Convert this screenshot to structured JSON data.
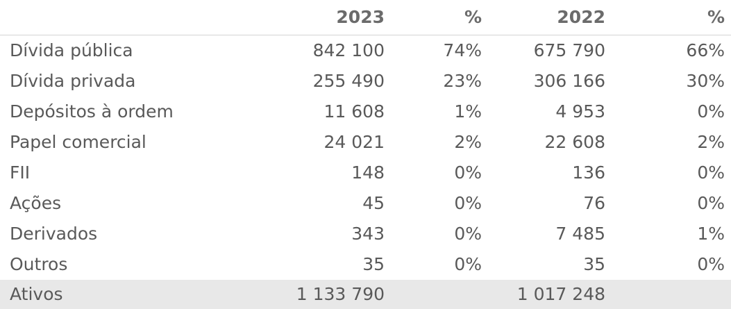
{
  "header": {
    "label": "",
    "year_1": "2023",
    "pct_1": "%",
    "year_2": "2022",
    "pct_2": "%"
  },
  "rows": [
    {
      "label": "Dívida pública",
      "v2023": "842 100",
      "p2023": "74%",
      "v2022": "675 790",
      "p2022": "66%"
    },
    {
      "label": "Dívida privada",
      "v2023": "255 490",
      "p2023": "23%",
      "v2022": "306 166",
      "p2022": "30%"
    },
    {
      "label": "Depósitos à ordem",
      "v2023": "11 608",
      "p2023": "1%",
      "v2022": "4 953",
      "p2022": "0%"
    },
    {
      "label": "Papel comercial",
      "v2023": "24 021",
      "p2023": "2%",
      "v2022": "22 608",
      "p2022": "2%"
    },
    {
      "label": "FII",
      "v2023": "148",
      "p2023": "0%",
      "v2022": "136",
      "p2022": "0%"
    },
    {
      "label": "Ações",
      "v2023": "45",
      "p2023": "0%",
      "v2022": "76",
      "p2022": "0%"
    },
    {
      "label": "Derivados",
      "v2023": "343",
      "p2023": "0%",
      "v2022": "7 485",
      "p2022": "1%"
    },
    {
      "label": "Outros",
      "v2023": "35",
      "p2023": "0%",
      "v2022": "35",
      "p2022": "0%"
    }
  ],
  "total": {
    "label": "Ativos",
    "v2023": "1 133 790",
    "p2023": "",
    "v2022": "1 017 248",
    "p2022": ""
  }
}
